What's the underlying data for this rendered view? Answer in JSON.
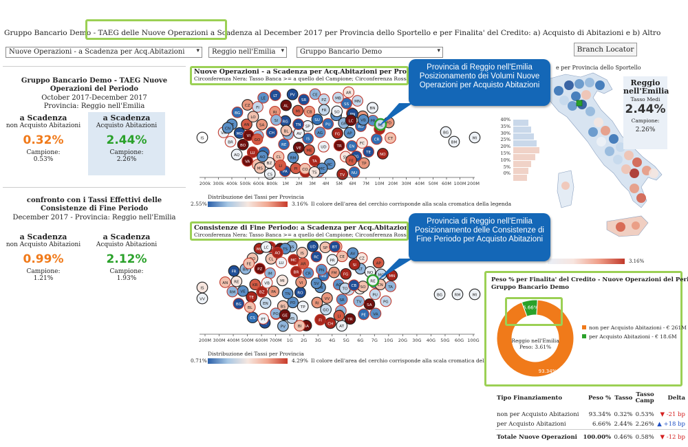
{
  "page_title": "Gruppo Bancario Demo - TAEG delle Nuove Operazioni a Scadenza al December 2017 per Provincia dello Sportello e per Finalita' del Credito: a) Acquisto di Abitazioni e b) Altro",
  "filters": {
    "operation_type": "Nuove Operazioni - a Scadenza per Acq.Abitazioni",
    "province": "Reggio nell'Emilia",
    "group": "Gruppo Bancario Demo"
  },
  "branch_locator_label": "Branch Locator",
  "left_top": {
    "title": "Gruppo Bancario Demo - TAEG Nuove Operazioni del Periodo",
    "period": "October 2017-December 2017",
    "province_line": "Provincia: Reggio nell'Emilia",
    "non_acq": {
      "heading": "a Scadenza",
      "sub": "non Acquisto Abitazioni",
      "value": "0.32%",
      "camp_label": "Campione:",
      "camp_value": "0.53%"
    },
    "acq": {
      "heading": "a Scadenza",
      "sub": "Acquisto Abitazioni",
      "value": "2.44%",
      "camp_label": "Campione:",
      "camp_value": "2.26%"
    }
  },
  "left_bottom": {
    "title": "confronto con i Tassi Effettivi delle Consistenze di Fine Periodo",
    "period_line": "December 2017 - Provincia: Reggio nell'Emilia",
    "non_acq": {
      "heading": "a Scadenza",
      "sub": "non Acquisto Abitazioni",
      "value": "0.99%",
      "camp_label": "Campione:",
      "camp_value": "1.21%"
    },
    "acq": {
      "heading": "a Scadenza",
      "sub": "Acquisto Abitazioni",
      "value": "2.12%",
      "camp_label": "Campione:",
      "camp_value": "1.93%"
    }
  },
  "bubble_top": {
    "title": "Nuove Operazioni - a Scadenza per Acq.Abitazioni per Provincia Sportello",
    "subtitle": "Circonferenza Nera: Tasso Banca >= a quello del Campione; Circonferenza Rossa: viceversa",
    "legend_title": "Distribuzione dei Tassi per Provincia",
    "legend_min": "2.55%",
    "legend_max": "3.16%",
    "legend_note": "Il colore dell'area del cerchio corrisponde alla scala cromatica della legenda",
    "axis_ticks": [
      "200k",
      "300k",
      "400k",
      "500k",
      "600k",
      "800k",
      "1M",
      "2M",
      "3M",
      "4M",
      "5M",
      "6M",
      "7M",
      "10M",
      "20M",
      "30M",
      "40M",
      "50M",
      "60M",
      "100M",
      "200M"
    ]
  },
  "bubble_bottom": {
    "title": "Consistenze di Fine Periodo: a Scadenza per Acq.Abitazioni per Provincia",
    "subtitle": "Circonferenza Nera: Tasso Banca >= a quello del Campione; Circonferenza Rossa: viceversa",
    "legend_title": "Distribuzione dei Tassi per Provincia",
    "legend_min": "0.71%",
    "legend_max": "4.29%",
    "legend_note": "Il colore dell'area del cerchio corrisponde alla scala cromatica della legenda",
    "axis_ticks": [
      "200M",
      "300M",
      "400M",
      "500M",
      "600M",
      "700M",
      "1G",
      "2G",
      "3G",
      "4G",
      "5G",
      "6G",
      "7G",
      "10G",
      "20G",
      "30G",
      "40G",
      "50G",
      "60G",
      "100G"
    ]
  },
  "callout_top": "Provincia di Reggio nell'Emilia Posizionamento dei Volumi Nuove Operazioni per Acquisto Abitazioni",
  "callout_bottom": "Provincia di Reggio nell'Emilia Posizionamento delle Consistenze di Fine Periodo per Acquisto Abitazioni",
  "map": {
    "title": "e per Provincia dello Sportello",
    "hist_ticks": [
      "40%",
      "35%",
      "30%",
      "25%",
      "20%",
      "15%",
      "10%",
      "5%",
      "0%"
    ],
    "scale_max": "3.16%",
    "card": {
      "name_line1": "Reggio",
      "name_line2": "nell'Emilia",
      "rate_label": "Tasso Medi",
      "rate": "2.44%",
      "camp_label": "Campione:",
      "camp_value": "2.26%"
    }
  },
  "donut": {
    "title_line1": "Peso % per Finalita' del Credito - Nuove Operazioni del Periodo",
    "title_line2": "Gruppo Bancario Demo",
    "center_line1": "Reggio nell'Emilia",
    "center_line2": "Peso: 3.61%",
    "slices": [
      {
        "label": "non per Acquisto Abitazioni - € 261M",
        "value": 93.34,
        "display": "93.34%",
        "color": "#f07a1a"
      },
      {
        "label": "per Acquisto Abitazioni - € 18.6M",
        "value": 6.66,
        "display": "6.66%",
        "color": "#2aa12a"
      }
    ]
  },
  "fin_table": {
    "headers": [
      "Tipo Finanziamento",
      "Peso %",
      "Tasso",
      "Tasso Camp",
      "Delta"
    ],
    "rows": [
      {
        "tipo": "non per Acquisto Abitazioni",
        "peso": "93.34%",
        "tasso": "0.32%",
        "camp": "0.53%",
        "delta": "▼ -21 bp"
      },
      {
        "tipo": "per Acquisto Abitazioni",
        "peso": "6.66%",
        "tasso": "2.44%",
        "camp": "2.26%",
        "delta": "▲ +18 bp"
      }
    ],
    "total": {
      "tipo": "Totale Nuove Operazioni",
      "peso": "100.00%",
      "tasso": "0.46%",
      "camp": "0.58%",
      "delta": "▼ -12 bp"
    }
  },
  "province_codes_top": [
    "IS",
    "VV",
    "CL",
    "CB",
    "AG",
    "NU",
    "BN",
    "KR",
    "SU",
    "RG",
    "EN",
    "SR",
    "TR",
    "AV",
    "RI",
    "TP",
    "CE",
    "SA",
    "PA",
    "CS",
    "CZ",
    "RC",
    "LT",
    "TA",
    "CH",
    "SS",
    "PZ",
    "AQ",
    "LE",
    "BR",
    "FG",
    "BA",
    "ME",
    "CT",
    "SV",
    "TE",
    "VT",
    "PE",
    "CR",
    "PV",
    "MN",
    "LU",
    "AP",
    "RO",
    "IM",
    "AL",
    "AN",
    "PU",
    "PI",
    "PR",
    "FC",
    "UD",
    "VR",
    "VE",
    "TV",
    "BG",
    "BS",
    "MI",
    "TO",
    "MB",
    "RM",
    "RE",
    "MO",
    "BO",
    "FI",
    "LO",
    "GE",
    "SP",
    "VA",
    "CO",
    "PD",
    "VI",
    "BZ",
    "TN",
    "NO",
    "AR",
    "AT",
    "MC",
    "PG",
    "SI",
    "GR",
    "FE",
    "FR",
    "LI",
    "MS",
    "BL",
    "CN",
    "GO",
    "PN",
    "TS",
    "BI",
    "VB",
    "AO",
    "SO",
    "LC",
    "PT",
    "PO",
    "BT",
    "FM",
    "OR",
    "OG",
    "CI",
    "VS",
    "OT",
    "SS2",
    "NA"
  ],
  "province_codes_bottom": [
    "IS",
    "VV",
    "EN",
    "KR",
    "CL",
    "NU",
    "AG",
    "SR",
    "CZ",
    "RO",
    "AV",
    "RI",
    "PA",
    "TR",
    "BN",
    "CS",
    "ME",
    "RC",
    "SA",
    "TP",
    "CE",
    "PZ",
    "LT",
    "FG",
    "AQ",
    "CH",
    "LE",
    "TA",
    "SS",
    "BR",
    "TE",
    "VT",
    "BA",
    "CT",
    "PE",
    "CR",
    "MN",
    "PV",
    "LU",
    "AP",
    "MS",
    "IM",
    "AL",
    "AN",
    "PU",
    "PI",
    "PR",
    "FC",
    "UD",
    "VR",
    "VE",
    "TV",
    "BG",
    "RM",
    "MO",
    "BO",
    "FI",
    "BS",
    "MI",
    "TO",
    "RE",
    "SP",
    "VA",
    "CO",
    "PD",
    "VI",
    "BZ",
    "TN",
    "NO",
    "AR",
    "AT",
    "MC",
    "PG",
    "SI",
    "GR",
    "FE",
    "FR",
    "LI",
    "SV",
    "BL",
    "CN",
    "GO",
    "PN",
    "TS",
    "BI",
    "VB",
    "AO",
    "SO",
    "LC",
    "PT",
    "PO",
    "BT",
    "FM",
    "CB",
    "GE",
    "LO",
    "SU",
    "RG",
    "NA"
  ]
}
